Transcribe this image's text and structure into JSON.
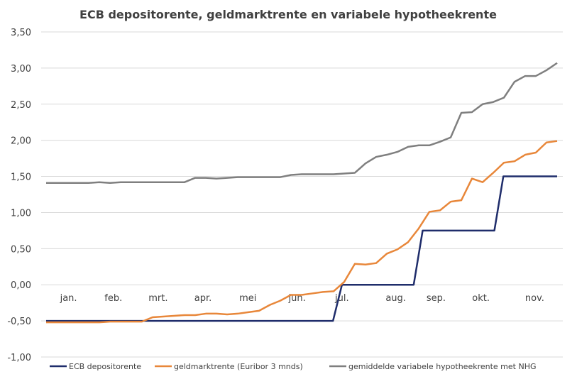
{
  "chart_data": {
    "type": "line",
    "title": "ECB depositorente, geldmarktrente en variabele hypotheekrente",
    "xlabel": "",
    "ylabel": "",
    "ylim": [
      -1.0,
      3.5
    ],
    "yticks": [
      "3,50",
      "3,00",
      "2,50",
      "2,00",
      "1,50",
      "1,00",
      "0,50",
      "0,00",
      "-0,50",
      "-1,00"
    ],
    "ytick_values": [
      3.5,
      3.0,
      2.5,
      2.0,
      1.5,
      1.0,
      0.5,
      0.0,
      -0.5,
      -1.0
    ],
    "months": [
      {
        "label": "jan.",
        "x": 2.5
      },
      {
        "label": "feb.",
        "x": 7.5
      },
      {
        "label": "mrt.",
        "x": 12.5
      },
      {
        "label": "apr.",
        "x": 17.5
      },
      {
        "label": "mei",
        "x": 22.5
      },
      {
        "label": "jun.",
        "x": 28
      },
      {
        "label": "jul.",
        "x": 33
      },
      {
        "label": "aug.",
        "x": 39
      },
      {
        "label": "sep.",
        "x": 43.5
      },
      {
        "label": "okt.",
        "x": 48.5
      },
      {
        "label": "nov.",
        "x": 54.5
      }
    ],
    "grid": true,
    "legend_position": "bottom",
    "x_count": 58,
    "series": [
      {
        "name": "ECB depositorente",
        "color": "#1f2d6b",
        "values": [
          -0.5,
          -0.5,
          -0.5,
          -0.5,
          -0.5,
          -0.5,
          -0.5,
          -0.5,
          -0.5,
          -0.5,
          -0.5,
          -0.5,
          -0.5,
          -0.5,
          -0.5,
          -0.5,
          -0.5,
          -0.5,
          -0.5,
          -0.5,
          -0.5,
          -0.5,
          -0.5,
          -0.5,
          -0.5,
          -0.5,
          -0.5,
          -0.5,
          -0.5,
          -0.5,
          -0.5,
          -0.5,
          -0.5,
          0,
          0,
          0,
          0,
          0,
          0,
          0,
          0,
          0,
          0.75,
          0.75,
          0.75,
          0.75,
          0.75,
          0.75,
          0.75,
          0.75,
          0.75,
          1.5,
          1.5,
          1.5,
          1.5,
          1.5,
          1.5,
          1.5
        ]
      },
      {
        "name": "geldmarktrente (Euribor 3 mnds)",
        "color": "#e8873a",
        "values": [
          -0.52,
          -0.52,
          -0.52,
          -0.52,
          -0.52,
          -0.52,
          -0.51,
          -0.51,
          -0.51,
          -0.51,
          -0.45,
          -0.44,
          -0.43,
          -0.42,
          -0.42,
          -0.4,
          -0.4,
          -0.41,
          -0.4,
          -0.38,
          -0.36,
          -0.28,
          -0.22,
          -0.14,
          -0.14,
          -0.12,
          -0.1,
          -0.09,
          0.04,
          0.29,
          0.28,
          0.3,
          0.43,
          0.49,
          0.59,
          0.78,
          1.01,
          1.03,
          1.15,
          1.17,
          1.47,
          1.42,
          1.55,
          1.69,
          1.71,
          1.8,
          1.83,
          1.97,
          1.99
        ]
      },
      {
        "name": "gemiddelde variabele hypotheekrente met NHG",
        "color": "#7f7f7f",
        "values": [
          1.41,
          1.41,
          1.41,
          1.41,
          1.41,
          1.42,
          1.41,
          1.42,
          1.42,
          1.42,
          1.42,
          1.42,
          1.42,
          1.42,
          1.48,
          1.48,
          1.47,
          1.48,
          1.49,
          1.49,
          1.49,
          1.49,
          1.49,
          1.52,
          1.53,
          1.53,
          1.53,
          1.53,
          1.54,
          1.55,
          1.68,
          1.77,
          1.8,
          1.84,
          1.91,
          1.93,
          1.93,
          1.98,
          2.04,
          2.38,
          2.39,
          2.5,
          2.53,
          2.59,
          2.81,
          2.89,
          2.89,
          2.97,
          3.07
        ]
      }
    ]
  }
}
